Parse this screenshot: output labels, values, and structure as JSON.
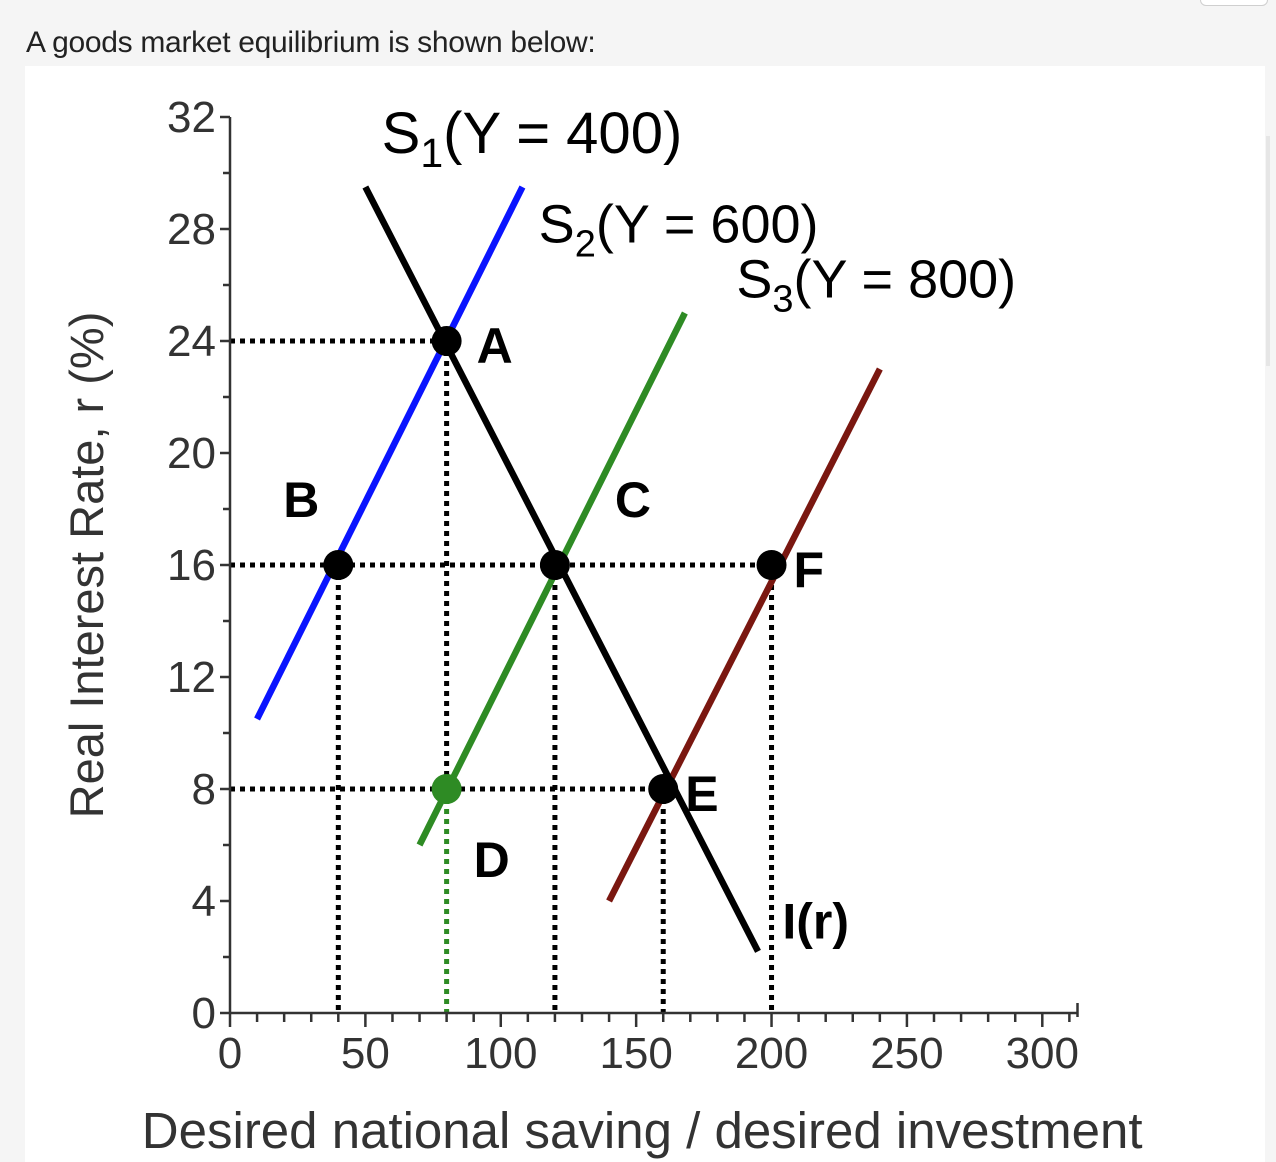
{
  "prompt": "A goods market equilibrium is shown below:",
  "chart_data": {
    "type": "line",
    "title": "",
    "xlabel": "Desired national saving / desired investment",
    "ylabel": "Real Interest Rate, r (%)",
    "xlim": [
      0,
      300
    ],
    "ylim": [
      0,
      32
    ],
    "xticks": [
      0,
      50,
      100,
      150,
      200,
      250,
      300
    ],
    "yticks": [
      0,
      4,
      8,
      12,
      16,
      20,
      24,
      28,
      32
    ],
    "grid": false,
    "colors": {
      "S1": "#0a14ff",
      "S2": "#2e8b24",
      "S3": "#7a1710",
      "I": "#000000",
      "guides": "#000000",
      "D_guide": "#2e8b24"
    },
    "series": [
      {
        "id": "S1",
        "label_main": "S",
        "label_sub": "1",
        "label_rest": "(Y =  400)",
        "points": [
          [
            10,
            10.5
          ],
          [
            108,
            29.5
          ]
        ]
      },
      {
        "id": "S2",
        "label_main": "S",
        "label_sub": "2",
        "label_rest": "(Y = 600)",
        "points": [
          [
            70,
            6
          ],
          [
            168,
            25
          ]
        ]
      },
      {
        "id": "S3",
        "label_main": "S",
        "label_sub": "3",
        "label_rest": "(Y = 800)",
        "points": [
          [
            140,
            4
          ],
          [
            240,
            23
          ]
        ]
      },
      {
        "id": "I",
        "label": "I(r)",
        "points": [
          [
            50,
            29.5
          ],
          [
            195,
            2.2
          ]
        ]
      }
    ],
    "points": [
      {
        "label": "A",
        "x": 80,
        "y": 24
      },
      {
        "label": "B",
        "x": 40,
        "y": 16
      },
      {
        "label": "C",
        "x": 120,
        "y": 16
      },
      {
        "label": "D",
        "x": 80,
        "y": 8
      },
      {
        "label": "E",
        "x": 160,
        "y": 8
      },
      {
        "label": "F",
        "x": 200,
        "y": 16
      }
    ]
  }
}
